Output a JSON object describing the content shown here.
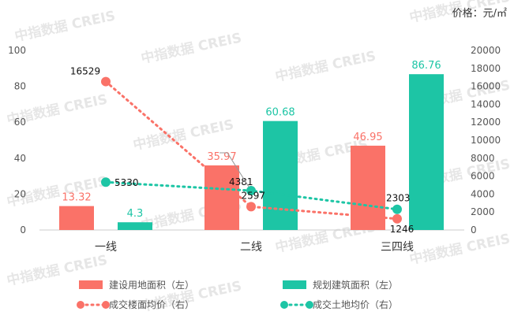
{
  "unit_label": "价格：元/㎡",
  "watermark": "中指数据 CREIS",
  "chart_data": {
    "type": "bar",
    "categories": [
      "一线",
      "二线",
      "三四线"
    ],
    "series": [
      {
        "name": "建设用地面积（左）",
        "kind": "bar",
        "axis": "left",
        "color": "#fa7268",
        "values": [
          13.32,
          35.97,
          46.95
        ],
        "labels": [
          "13.32",
          "35.97",
          "46.95"
        ]
      },
      {
        "name": "规划建筑面积（左）",
        "kind": "bar",
        "axis": "left",
        "color": "#1dc5a5",
        "values": [
          4.3,
          60.68,
          86.76
        ],
        "labels": [
          "4.3",
          "60.68",
          "86.76"
        ]
      },
      {
        "name": "成交楼面均价（右）",
        "kind": "line",
        "axis": "right",
        "color": "#fa7268",
        "values": [
          16529,
          2597,
          1246
        ],
        "labels": [
          "16529",
          "2597",
          "1246"
        ]
      },
      {
        "name": "成交土地均价（右）",
        "kind": "line",
        "axis": "right",
        "color": "#1dc5a5",
        "values": [
          5330,
          4381,
          2303
        ],
        "labels": [
          "5330",
          "4381",
          "2303"
        ]
      }
    ],
    "y_left": {
      "min": 0,
      "max": 100,
      "ticks": [
        "0",
        "20",
        "40",
        "60",
        "80",
        "100"
      ]
    },
    "y_right": {
      "min": 0,
      "max": 20000,
      "ticks": [
        "0",
        "2000",
        "4000",
        "6000",
        "8000",
        "10000",
        "12000",
        "14000",
        "16000",
        "18000",
        "20000"
      ]
    },
    "grid": false,
    "legend_position": "bottom"
  }
}
